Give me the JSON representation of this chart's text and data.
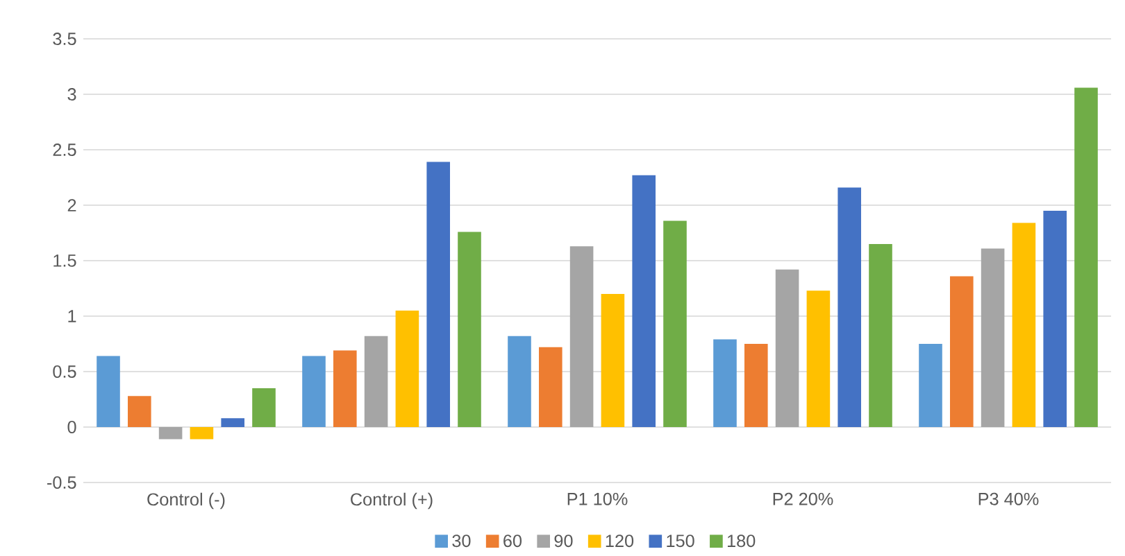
{
  "chart_data": {
    "type": "bar",
    "categories": [
      "Control (-)",
      "Control (+)",
      "P1 10%",
      "P2 20%",
      "P3 40%"
    ],
    "series": [
      {
        "name": "30",
        "color": "#5b9bd5",
        "values": [
          0.64,
          0.64,
          0.82,
          0.79,
          0.75
        ]
      },
      {
        "name": "60",
        "color": "#ed7d31",
        "values": [
          0.28,
          0.69,
          0.72,
          0.75,
          1.36
        ]
      },
      {
        "name": "90",
        "color": "#a5a5a5",
        "values": [
          -0.11,
          0.82,
          1.63,
          1.42,
          1.61
        ]
      },
      {
        "name": "120",
        "color": "#ffc000",
        "values": [
          -0.11,
          1.05,
          1.2,
          1.23,
          1.84
        ]
      },
      {
        "name": "150",
        "color": "#4472c4",
        "values": [
          0.08,
          2.39,
          2.27,
          2.16,
          1.95
        ]
      },
      {
        "name": "180",
        "color": "#70ad47",
        "values": [
          0.35,
          1.76,
          1.86,
          1.65,
          3.06
        ]
      }
    ],
    "ylim": [
      -0.5,
      3.5
    ],
    "yticks": [
      -0.5,
      0,
      0.5,
      1,
      1.5,
      2,
      2.5,
      3,
      3.5
    ],
    "grid": "y",
    "legend": "bottom"
  }
}
